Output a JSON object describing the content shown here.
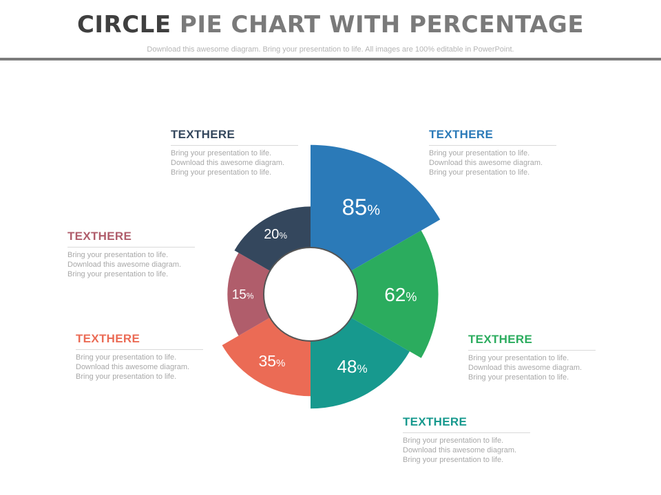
{
  "header": {
    "title_part1": "CIRCLE",
    "title_part2": " PIE CHART WITH PERCENTAGE",
    "subtitle": "Download this awesome diagram. Bring your presentation to life. All images are 100% editable in PowerPoint."
  },
  "colors": {
    "blue": "#2b7ab8",
    "green": "#2bac5e",
    "teal": "#17998e",
    "coral": "#eb6b55",
    "rose": "#b05d6b",
    "navy": "#34475d"
  },
  "chart_data": {
    "type": "pie",
    "title": "",
    "slices": [
      {
        "value": 85,
        "label": "85",
        "unit": "%",
        "color": "#2b7ab8"
      },
      {
        "value": 62,
        "label": "62",
        "unit": "%",
        "color": "#2bac5e"
      },
      {
        "value": 48,
        "label": "48",
        "unit": "%",
        "color": "#17998e"
      },
      {
        "value": 35,
        "label": "35",
        "unit": "%",
        "color": "#eb6b55"
      },
      {
        "value": 15,
        "label": "15",
        "unit": "%",
        "color": "#b05d6b"
      },
      {
        "value": 20,
        "label": "20",
        "unit": "%",
        "color": "#34475d"
      }
    ]
  },
  "labels": [
    {
      "heading": "TEXTHERE",
      "color": "#2b7ab8",
      "lines": [
        "Bring your presentation to life.",
        "Download this awesome diagram.",
        "Bring your presentation to life."
      ]
    },
    {
      "heading": "TEXTHERE",
      "color": "#2bac5e",
      "lines": [
        "Bring your presentation to life.",
        "Download this awesome diagram.",
        "Bring your presentation to life."
      ]
    },
    {
      "heading": "TEXTHERE",
      "color": "#17998e",
      "lines": [
        "Bring your presentation to life.",
        "Download this awesome diagram.",
        "Bring your presentation to life."
      ]
    },
    {
      "heading": "TEXTHERE",
      "color": "#eb6b55",
      "lines": [
        "Bring your presentation to life.",
        "Download this awesome diagram.",
        "Bring your presentation to life."
      ]
    },
    {
      "heading": "TEXTHERE",
      "color": "#b05d6b",
      "lines": [
        "Bring your presentation to life.",
        "Download this awesome diagram.",
        "Bring your presentation to life."
      ]
    },
    {
      "heading": "TEXTHERE",
      "color": "#34475d",
      "lines": [
        "Bring your presentation to life.",
        "Download this awesome diagram.",
        "Bring your presentation to life."
      ]
    }
  ]
}
